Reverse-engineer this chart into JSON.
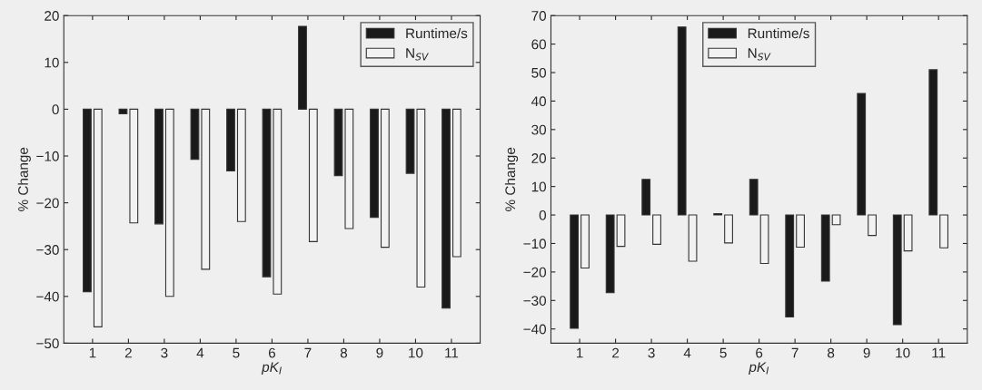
{
  "chart_data": [
    {
      "type": "bar",
      "categories": [
        "1",
        "2",
        "3",
        "4",
        "5",
        "6",
        "7",
        "8",
        "9",
        "10",
        "11"
      ],
      "xlabel": "pK$_{I}$",
      "ylabel": "% Change",
      "ylim": [
        -50,
        20
      ],
      "yticks": [
        -50,
        -40,
        -30,
        -20,
        -10,
        0,
        10,
        20
      ],
      "legend": "top right",
      "grid": false,
      "series": [
        {
          "name": "Runtime/s",
          "color": "#1a1a1a",
          "values": [
            -39,
            -1,
            -24.5,
            -10.7,
            -13.2,
            -35.8,
            17.7,
            -14.2,
            -23.1,
            -13.7,
            -42.5
          ]
        },
        {
          "name": "N$_{SV}$",
          "color": "#f2f2f2",
          "values": [
            -46.5,
            -24.3,
            -40,
            -34.2,
            -24,
            -39.5,
            -28.3,
            -25.5,
            -29.5,
            -38,
            -31.5
          ]
        }
      ]
    },
    {
      "type": "bar",
      "categories": [
        "1",
        "2",
        "3",
        "4",
        "5",
        "6",
        "7",
        "8",
        "9",
        "10",
        "11"
      ],
      "xlabel": "pK$_{I}$",
      "ylabel": "% Change",
      "ylim": [
        -45,
        70
      ],
      "yticks": [
        -40,
        -30,
        -20,
        -10,
        0,
        10,
        20,
        30,
        40,
        50,
        60,
        70
      ],
      "legend": "top",
      "grid": false,
      "series": [
        {
          "name": "Runtime/s",
          "color": "#1a1a1a",
          "values": [
            -39.8,
            -27.3,
            12.5,
            66,
            0.5,
            12.5,
            -35.8,
            -23.2,
            42.7,
            -38.5,
            51
          ]
        },
        {
          "name": "N$_{SV}$",
          "color": "#f2f2f2",
          "values": [
            -18.6,
            -11,
            -10.3,
            -16.2,
            -9.8,
            -17,
            -11.3,
            -3.4,
            -7.2,
            -12.6,
            -11.5
          ]
        }
      ]
    }
  ]
}
